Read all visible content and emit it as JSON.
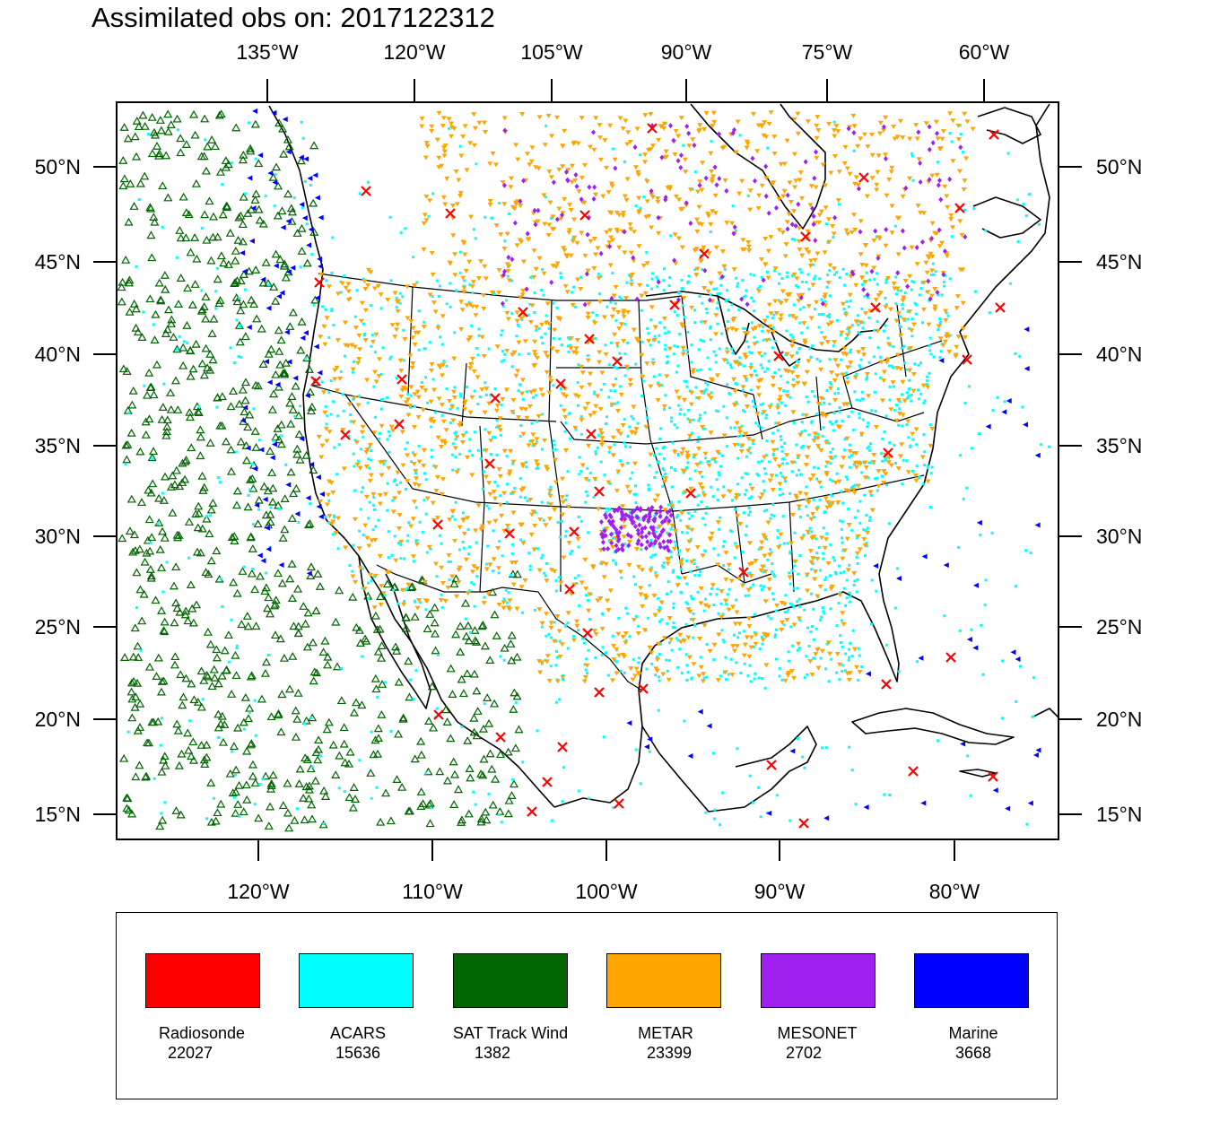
{
  "title": "Assimilated obs on: 2017122312",
  "top_axis_labels": [
    "135°W",
    "120°W",
    "105°W",
    "90°W",
    "75°W",
    "60°W"
  ],
  "bottom_axis_labels": [
    "120°W",
    "110°W",
    "100°W",
    "90°W",
    "80°W"
  ],
  "lat_labels": [
    "50°N",
    "45°N",
    "40°N",
    "35°N",
    "30°N",
    "25°N",
    "20°N",
    "15°N"
  ],
  "legend": [
    {
      "name": "Radiosonde",
      "count": "22027",
      "color": "#ff0000",
      "symbol": "x-mark"
    },
    {
      "name": "ACARS",
      "count": "15636",
      "color": "#00ffff",
      "symbol": "square-dot"
    },
    {
      "name": "SAT Track Wind",
      "count": "1382",
      "color": "#006400",
      "symbol": "open-triangle"
    },
    {
      "name": "METAR",
      "count": "23399",
      "color": "#ffa500",
      "symbol": "down-triangle"
    },
    {
      "name": "MESONET",
      "count": "2702",
      "color": "#a020f0",
      "symbol": "diamond"
    },
    {
      "name": "Marine",
      "count": "3668",
      "color": "#0000ff",
      "symbol": "left-triangle"
    }
  ],
  "map": {
    "land_color": "#ffffff",
    "coastline_color": "#000000",
    "projection": "Lambert Conformal"
  }
}
